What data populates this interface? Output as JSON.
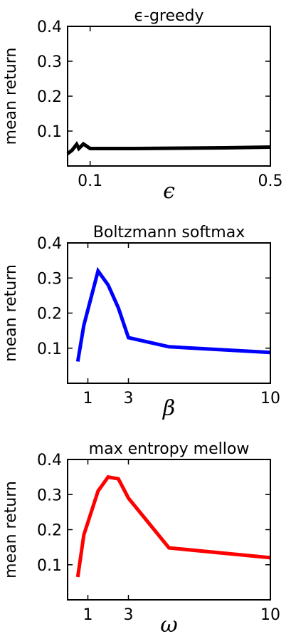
{
  "chart_data": [
    {
      "type": "line",
      "title": "ϵ-greedy",
      "xlabel": "ϵ",
      "ylabel": "mean return",
      "xlim": [
        0.05,
        0.5
      ],
      "ylim": [
        0.0,
        0.4
      ],
      "xticks": [
        0.1,
        0.5
      ],
      "xtick_labels": [
        "0.1",
        "0.5"
      ],
      "yticks": [
        0.1,
        0.2,
        0.3,
        0.4
      ],
      "ytick_labels": [
        "0.1",
        "0.2",
        "0.3",
        "0.4"
      ],
      "grid": false,
      "series": [
        {
          "color": "#000000",
          "x": [
            0.05,
            0.06,
            0.07,
            0.075,
            0.085,
            0.1,
            0.2,
            0.3,
            0.4,
            0.5
          ],
          "y": [
            0.035,
            0.045,
            0.062,
            0.05,
            0.063,
            0.05,
            0.05,
            0.051,
            0.052,
            0.054
          ]
        }
      ]
    },
    {
      "type": "line",
      "title": "Boltzmann softmax",
      "xlabel": "β",
      "ylabel": "mean return",
      "xlim": [
        0,
        10
      ],
      "ylim": [
        0.0,
        0.4
      ],
      "xticks": [
        1,
        3,
        10
      ],
      "xtick_labels": [
        "1",
        "3",
        "10"
      ],
      "yticks": [
        0.1,
        0.2,
        0.3,
        0.4
      ],
      "ytick_labels": [
        "0.1",
        "0.2",
        "0.3",
        "0.4"
      ],
      "grid": false,
      "series": [
        {
          "color": "#0000ff",
          "x": [
            0.5,
            0.8,
            1.5,
            2,
            2.5,
            3,
            5,
            10
          ],
          "y": [
            0.062,
            0.165,
            0.32,
            0.28,
            0.215,
            0.13,
            0.104,
            0.088
          ]
        }
      ]
    },
    {
      "type": "line",
      "title": "max entropy mellow",
      "xlabel": "ω",
      "ylabel": "mean return",
      "xlim": [
        0,
        10
      ],
      "ylim": [
        0.0,
        0.4
      ],
      "xticks": [
        1,
        3,
        10
      ],
      "xtick_labels": [
        "1",
        "3",
        "10"
      ],
      "yticks": [
        0.1,
        0.2,
        0.3,
        0.4
      ],
      "ytick_labels": [
        "0.1",
        "0.2",
        "0.3",
        "0.4"
      ],
      "grid": false,
      "series": [
        {
          "color": "#ff0000",
          "x": [
            0.5,
            0.8,
            1.5,
            2,
            2.5,
            3,
            5,
            10
          ],
          "y": [
            0.065,
            0.185,
            0.31,
            0.35,
            0.345,
            0.29,
            0.148,
            0.12
          ]
        }
      ]
    }
  ]
}
